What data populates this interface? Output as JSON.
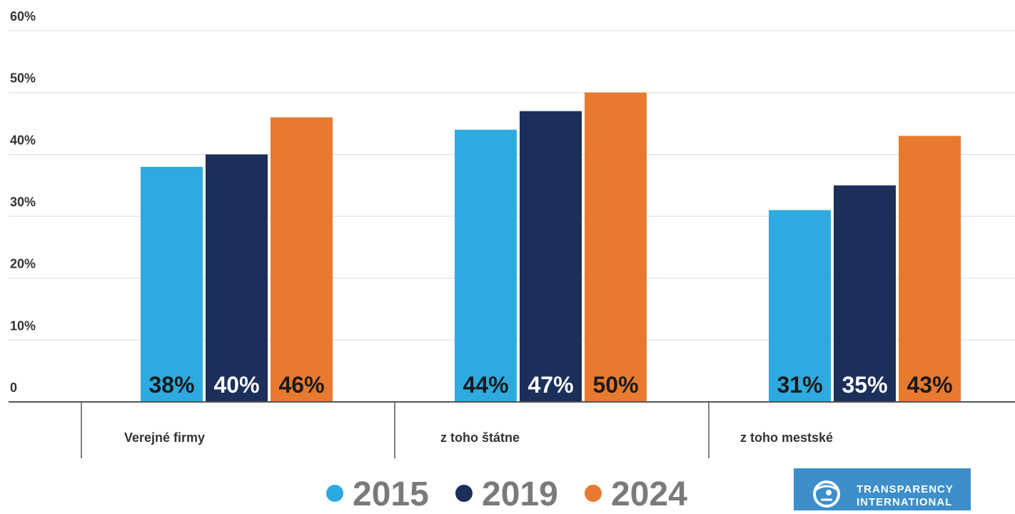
{
  "chart_data": {
    "type": "bar",
    "title": "",
    "xlabel": "",
    "ylabel": "",
    "ylim": [
      0,
      60
    ],
    "y_ticks": [
      {
        "value": 0,
        "label": "0"
      },
      {
        "value": 10,
        "label": "10%"
      },
      {
        "value": 20,
        "label": "20%"
      },
      {
        "value": 30,
        "label": "30%"
      },
      {
        "value": 40,
        "label": "40%"
      },
      {
        "value": 50,
        "label": "50%"
      },
      {
        "value": 60,
        "label": "60%"
      }
    ],
    "grid": true,
    "legend_position": "bottom",
    "categories": [
      "Verejné firmy",
      "z toho štátne",
      "z toho mestské"
    ],
    "series": [
      {
        "name": "2015",
        "color": "#2eaae1",
        "label_color": "#1a1a1a",
        "values": [
          38,
          44,
          31
        ],
        "labels": [
          "38%",
          "44%",
          "31%"
        ]
      },
      {
        "name": "2019",
        "color": "#1c2f5a",
        "label_color": "#ffffff",
        "values": [
          40,
          47,
          35
        ],
        "labels": [
          "40%",
          "47%",
          "35%"
        ]
      },
      {
        "name": "2024",
        "color": "#e87a30",
        "label_color": "#1a1a1a",
        "values": [
          46,
          50,
          43
        ],
        "labels": [
          "46%",
          "50%",
          "43%"
        ]
      }
    ]
  },
  "logo": {
    "name": "transparency-international-logo",
    "line1": "TRANSPARENCY",
    "line2": "INTERNATIONAL",
    "background": "#3d8ec9"
  }
}
